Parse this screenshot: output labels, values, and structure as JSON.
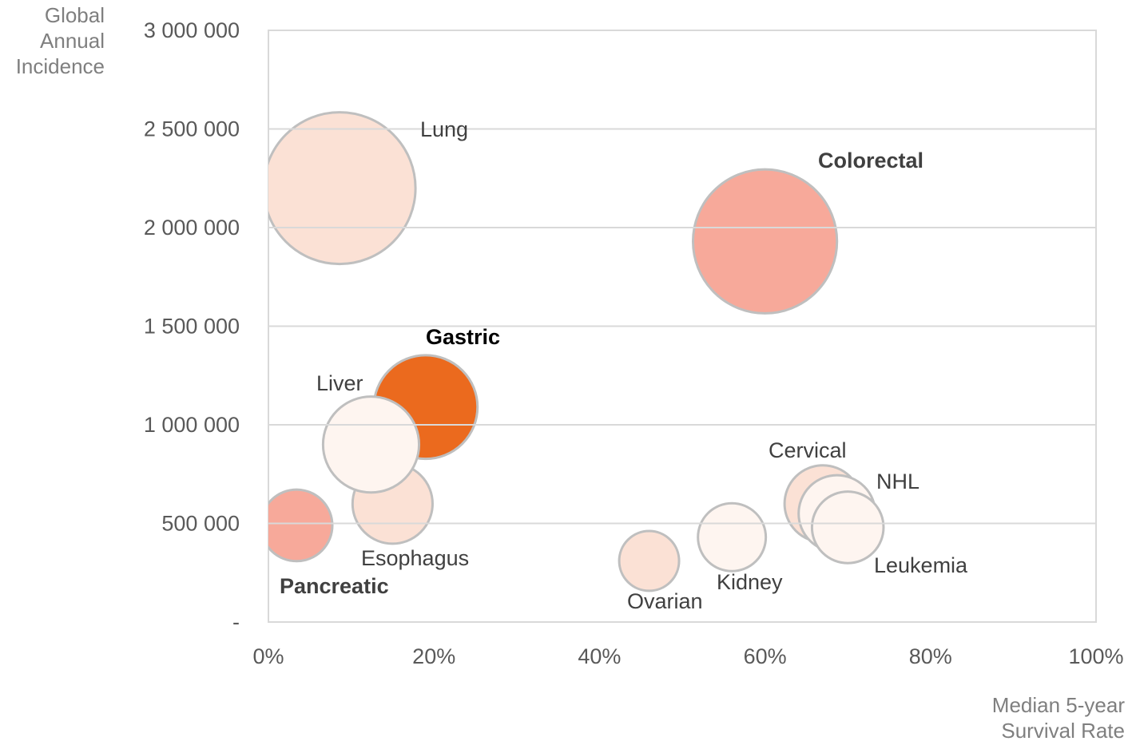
{
  "chart_data": {
    "type": "bubble",
    "x_label": "Median 5-year Survival Rate",
    "y_label": "Global Annual Incidence",
    "labels": [
      "Lung",
      "Colorectal",
      "Esophagus",
      "Gastric",
      "Liver",
      "Pancreatic",
      "Ovarian",
      "Kidney",
      "Cervical",
      "NHL",
      "Leukemia"
    ],
    "x": [
      8.6,
      60,
      15,
      19,
      12.4,
      3.4,
      46,
      56,
      67,
      68.7,
      70
    ],
    "y": [
      2200000,
      1930000,
      600000,
      1090000,
      900000,
      490000,
      310000,
      430000,
      600000,
      550000,
      480000
    ],
    "size": [
      90,
      81,
      25,
      42,
      36,
      20,
      14,
      18,
      23,
      23,
      20
    ],
    "colors": [
      "#fbe1d5",
      "#f7a99a",
      "#fbe1d5",
      "#eb6a1e",
      "#fef5f0",
      "#f7a99a",
      "#fbe1d5",
      "#fef5f0",
      "#fbe1d5",
      "#fef5f0",
      "#fef5f0"
    ],
    "highlight": [
      false,
      true,
      false,
      true,
      false,
      true,
      false,
      false,
      false,
      false,
      false
    ],
    "xlim": [
      0,
      100
    ],
    "ylim": [
      0,
      3000000
    ],
    "xticks": [
      {
        "value": 0,
        "label": "0%"
      },
      {
        "value": 20,
        "label": "20%"
      },
      {
        "value": 40,
        "label": "40%"
      },
      {
        "value": 60,
        "label": "60%"
      },
      {
        "value": 80,
        "label": "80%"
      },
      {
        "value": 100,
        "label": "100%"
      }
    ],
    "yticks": [
      {
        "value": 0,
        "label": "-"
      },
      {
        "value": 500000,
        "label": "500 000"
      },
      {
        "value": 1000000,
        "label": "1 000 000"
      },
      {
        "value": 1500000,
        "label": "1 500 000"
      },
      {
        "value": 2000000,
        "label": "2 000 000"
      },
      {
        "value": 2500000,
        "label": "2 500 000"
      },
      {
        "value": 3000000,
        "label": "3 000 000"
      }
    ],
    "grid": true
  }
}
